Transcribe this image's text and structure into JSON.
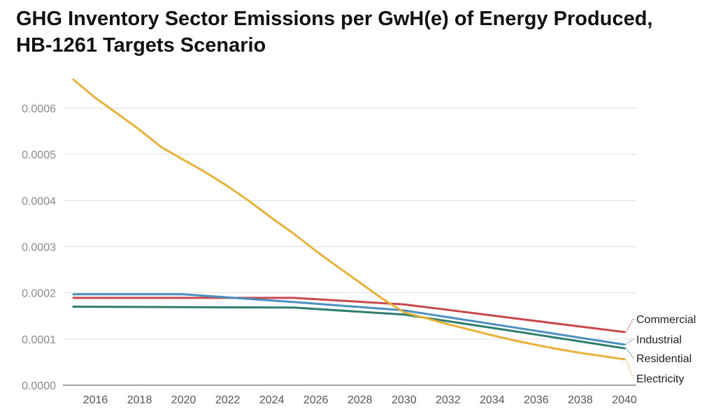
{
  "chart_data": {
    "type": "line",
    "title_line1": "GHG Inventory Sector Emissions per GwH(e) of Energy Produced,",
    "title_line2": "HB-1261 Targets Scenario",
    "xlabel": "",
    "ylabel": "",
    "xlim": [
      2015,
      2040
    ],
    "ylim": [
      0,
      0.0006
    ],
    "grid": true,
    "legend": "line-end labels (right)",
    "y_ticks": [
      "0.0000",
      "0.0001",
      "0.0002",
      "0.0003",
      "0.0004",
      "0.0005",
      "0.0006"
    ],
    "x_ticks": [
      "2016",
      "2018",
      "2020",
      "2022",
      "2024",
      "2026",
      "2028",
      "2030",
      "2032",
      "2034",
      "2036",
      "2038",
      "2040"
    ],
    "series": [
      {
        "name": "Commercial",
        "color": "#c8484b",
        "points": [
          [
            2015,
            0.000189
          ],
          [
            2025,
            0.000189
          ],
          [
            2030,
            0.000175
          ],
          [
            2035,
            0.000145
          ],
          [
            2040,
            0.000115
          ]
        ]
      },
      {
        "name": "Industrial",
        "color": "#4a8fc0",
        "points": [
          [
            2015,
            0.000197
          ],
          [
            2020,
            0.000197
          ],
          [
            2025,
            0.00018
          ],
          [
            2030,
            0.000162
          ],
          [
            2035,
            0.000125
          ],
          [
            2040,
            8.8e-05
          ]
        ]
      },
      {
        "name": "Residential",
        "color": "#2e7d6f",
        "points": [
          [
            2015,
            0.00017
          ],
          [
            2025,
            0.000168
          ],
          [
            2030,
            0.000153
          ],
          [
            2035,
            0.000117
          ],
          [
            2040,
            8e-05
          ]
        ]
      },
      {
        "name": "Electricity",
        "color": "#e8b13a",
        "points": [
          [
            2015,
            0.000662
          ],
          [
            2016,
            0.000622
          ],
          [
            2017,
            0.000588
          ],
          [
            2018,
            0.000553
          ],
          [
            2019,
            0.000515
          ],
          [
            2020,
            0.000488
          ],
          [
            2021,
            0.000461
          ],
          [
            2022,
            0.000431
          ],
          [
            2023,
            0.000398
          ],
          [
            2024,
            0.000362
          ],
          [
            2025,
            0.000328
          ],
          [
            2026,
            0.000291
          ],
          [
            2027,
            0.000256
          ],
          [
            2028,
            0.000222
          ],
          [
            2029,
            0.000188
          ],
          [
            2030,
            0.000158
          ],
          [
            2031,
            0.000145
          ],
          [
            2032,
            0.000132
          ],
          [
            2033,
            0.00012
          ],
          [
            2034,
            0.000108
          ],
          [
            2035,
            9.7e-05
          ],
          [
            2036,
            8.7e-05
          ],
          [
            2037,
            7.8e-05
          ],
          [
            2038,
            7e-05
          ],
          [
            2039,
            6.3e-05
          ],
          [
            2040,
            5.6e-05
          ]
        ]
      }
    ]
  }
}
